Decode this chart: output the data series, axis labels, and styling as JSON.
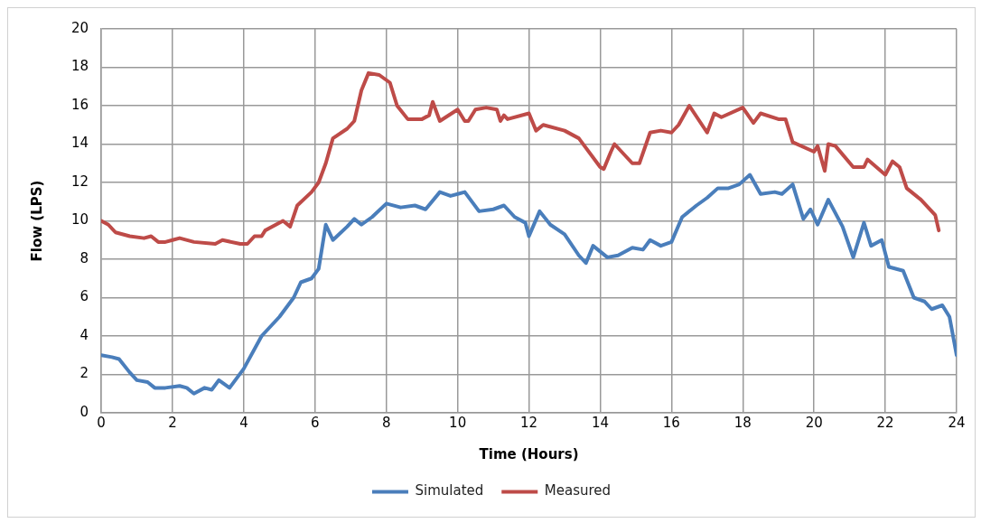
{
  "chart_data": {
    "type": "line",
    "xlabel": "Time (Hours)",
    "ylabel": "Flow (LPS)",
    "xlim": [
      0,
      24
    ],
    "xticks": [
      0,
      2,
      4,
      6,
      8,
      10,
      12,
      14,
      16,
      18,
      20,
      22,
      24
    ],
    "ylim": [
      0,
      20
    ],
    "yticks": [
      0,
      2,
      4,
      6,
      8,
      10,
      12,
      14,
      16,
      18,
      20
    ],
    "grid": true,
    "legend": "bottom",
    "marker": "none",
    "line_style": "solid",
    "series": [
      {
        "name": "Simulated",
        "color": "#4a7ebb",
        "x": [
          0,
          0.3,
          0.5,
          0.8,
          1.0,
          1.3,
          1.5,
          1.8,
          2.2,
          2.4,
          2.6,
          2.9,
          3.1,
          3.3,
          3.6,
          4.0,
          4.5,
          5.0,
          5.4,
          5.6,
          5.9,
          6.1,
          6.3,
          6.5,
          6.9,
          7.1,
          7.3,
          7.6,
          8.0,
          8.4,
          8.8,
          9.1,
          9.5,
          9.8,
          10.2,
          10.6,
          11.0,
          11.3,
          11.6,
          11.9,
          12.0,
          12.3,
          12.6,
          13.0,
          13.4,
          13.6,
          13.8,
          14.2,
          14.5,
          14.9,
          15.2,
          15.4,
          15.7,
          16.0,
          16.3,
          16.7,
          17.0,
          17.3,
          17.6,
          17.9,
          18.2,
          18.5,
          18.9,
          19.1,
          19.4,
          19.7,
          19.9,
          20.1,
          20.4,
          20.8,
          21.1,
          21.4,
          21.6,
          21.9,
          22.1,
          22.5,
          22.8,
          23.1,
          23.3,
          23.6,
          23.8,
          24.0
        ],
        "values": [
          3.0,
          2.9,
          2.8,
          2.1,
          1.7,
          1.6,
          1.3,
          1.3,
          1.4,
          1.3,
          1.0,
          1.3,
          1.2,
          1.7,
          1.3,
          2.3,
          4.0,
          5.0,
          6.0,
          6.8,
          7.0,
          7.5,
          9.8,
          9.0,
          9.7,
          10.1,
          9.8,
          10.2,
          10.9,
          10.7,
          10.8,
          10.6,
          11.5,
          11.3,
          11.5,
          10.5,
          10.6,
          10.8,
          10.2,
          9.9,
          9.2,
          10.5,
          9.8,
          9.3,
          8.2,
          7.8,
          8.7,
          8.1,
          8.2,
          8.6,
          8.5,
          9.0,
          8.7,
          8.9,
          10.2,
          10.8,
          11.2,
          11.7,
          11.7,
          11.9,
          12.4,
          11.4,
          11.5,
          11.4,
          11.9,
          10.1,
          10.6,
          9.8,
          11.1,
          9.7,
          8.1,
          9.9,
          8.7,
          9.0,
          7.6,
          7.4,
          6.0,
          5.8,
          5.4,
          5.6,
          5.0,
          3.0
        ]
      },
      {
        "name": "Measured",
        "color": "#be4b48",
        "x": [
          0,
          0.2,
          0.4,
          0.8,
          1.2,
          1.4,
          1.6,
          1.8,
          2.0,
          2.2,
          2.6,
          3.2,
          3.4,
          3.9,
          4.1,
          4.3,
          4.5,
          4.6,
          5.1,
          5.3,
          5.5,
          5.9,
          6.1,
          6.3,
          6.5,
          6.9,
          7.1,
          7.3,
          7.5,
          7.8,
          8.1,
          8.3,
          8.6,
          9.0,
          9.2,
          9.3,
          9.5,
          10.0,
          10.2,
          10.3,
          10.5,
          10.8,
          11.1,
          11.2,
          11.3,
          11.4,
          12.0,
          12.2,
          12.4,
          13.0,
          13.4,
          14.0,
          14.1,
          14.3,
          14.4,
          14.9,
          15.1,
          15.4,
          15.7,
          16.0,
          16.2,
          16.5,
          17.0,
          17.2,
          17.4,
          18.0,
          18.3,
          18.5,
          19.0,
          19.2,
          19.4,
          20.0,
          20.1,
          20.3,
          20.4,
          20.6,
          21.1,
          21.4,
          21.5,
          22.0,
          22.2,
          22.4,
          22.6,
          23.0,
          23.2,
          23.4,
          23.5
        ],
        "values": [
          10.0,
          9.8,
          9.4,
          9.2,
          9.1,
          9.2,
          8.9,
          8.9,
          9.0,
          9.1,
          8.9,
          8.8,
          9.0,
          8.8,
          8.8,
          9.2,
          9.2,
          9.5,
          10.0,
          9.7,
          10.8,
          11.5,
          12.0,
          13.0,
          14.3,
          14.8,
          15.2,
          16.8,
          17.7,
          17.6,
          17.2,
          16.0,
          15.3,
          15.3,
          15.5,
          16.2,
          15.2,
          15.8,
          15.2,
          15.2,
          15.8,
          15.9,
          15.8,
          15.2,
          15.5,
          15.3,
          15.6,
          14.7,
          15.0,
          14.7,
          14.3,
          12.8,
          12.7,
          13.6,
          14.0,
          13.0,
          13.0,
          14.6,
          14.7,
          14.6,
          15.0,
          16.0,
          14.6,
          15.6,
          15.4,
          15.9,
          15.1,
          15.6,
          15.3,
          15.3,
          14.1,
          13.6,
          13.9,
          12.6,
          14.0,
          13.9,
          12.8,
          12.8,
          13.2,
          12.4,
          13.1,
          12.8,
          11.7,
          11.1,
          10.7,
          10.3,
          9.5
        ]
      }
    ]
  }
}
